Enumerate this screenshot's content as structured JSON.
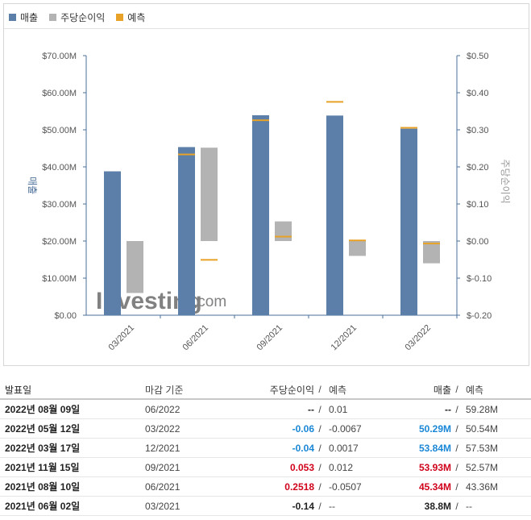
{
  "legend": [
    {
      "label": "매출",
      "color": "#5b7fa8"
    },
    {
      "label": "주당순이익",
      "color": "#b3b3b3"
    },
    {
      "label": "예측",
      "color": "#e8a227"
    }
  ],
  "watermark": {
    "brand": "Investing",
    "suffix": ".com"
  },
  "chart_data": {
    "type": "bar",
    "categories": [
      "03/2021",
      "06/2021",
      "09/2021",
      "12/2021",
      "03/2022"
    ],
    "left_axis": {
      "label": "매출",
      "ticks": [
        "$0.00",
        "$10.00M",
        "$20.00M",
        "$30.00M",
        "$40.00M",
        "$50.00M",
        "$60.00M",
        "$70.00M"
      ],
      "range": [
        0,
        70
      ]
    },
    "right_axis": {
      "label": "주당순이익",
      "ticks": [
        "$-0.20",
        "$-0.10",
        "$0.00",
        "$0.10",
        "$0.20",
        "$0.30",
        "$0.40",
        "$0.50"
      ],
      "range": [
        -0.2,
        0.5
      ]
    },
    "revenue": [
      38.8,
      45.34,
      53.93,
      53.84,
      50.29
    ],
    "revenue_forecast": [
      null,
      43.36,
      52.57,
      57.53,
      50.54
    ],
    "eps": [
      -0.14,
      0.2518,
      0.053,
      -0.04,
      -0.06
    ],
    "eps_forecast": [
      null,
      -0.0507,
      0.012,
      0.0017,
      -0.0067
    ],
    "colors": {
      "revenue": "#5b7fa8",
      "eps": "#b3b3b3",
      "forecast": "#e8a227"
    },
    "grid": false
  },
  "table": {
    "headers": {
      "date": "발표일",
      "period": "마감 기준",
      "eps": "주당순이익",
      "slash": "/",
      "eps_forecast": "예측",
      "revenue": "매출",
      "revenue_forecast": "예측"
    },
    "rows": [
      {
        "date": "2022년 08월 09일",
        "period": "06/2022",
        "eps": "--",
        "eps_class": "neu",
        "eps_forecast": "0.01",
        "revenue": "--",
        "revenue_class": "neu",
        "revenue_forecast": "59.28M"
      },
      {
        "date": "2022년 05월 12일",
        "period": "03/2022",
        "eps": "-0.06",
        "eps_class": "neg",
        "eps_forecast": "-0.0067",
        "revenue": "50.29M",
        "revenue_class": "neg",
        "revenue_forecast": "50.54M"
      },
      {
        "date": "2022년 03월 17일",
        "period": "12/2021",
        "eps": "-0.04",
        "eps_class": "neg",
        "eps_forecast": "0.0017",
        "revenue": "53.84M",
        "revenue_class": "neg",
        "revenue_forecast": "57.53M"
      },
      {
        "date": "2021년 11월 15일",
        "period": "09/2021",
        "eps": "0.053",
        "eps_class": "pos",
        "eps_forecast": "0.012",
        "revenue": "53.93M",
        "revenue_class": "pos",
        "revenue_forecast": "52.57M"
      },
      {
        "date": "2021년 08월 10일",
        "period": "06/2021",
        "eps": "0.2518",
        "eps_class": "pos",
        "eps_forecast": "-0.0507",
        "revenue": "45.34M",
        "revenue_class": "pos",
        "revenue_forecast": "43.36M"
      },
      {
        "date": "2021년 06월 02일",
        "period": "03/2021",
        "eps": "-0.14",
        "eps_class": "neu",
        "eps_forecast": "--",
        "revenue": "38.8M",
        "revenue_class": "neu",
        "revenue_forecast": "--"
      }
    ]
  }
}
